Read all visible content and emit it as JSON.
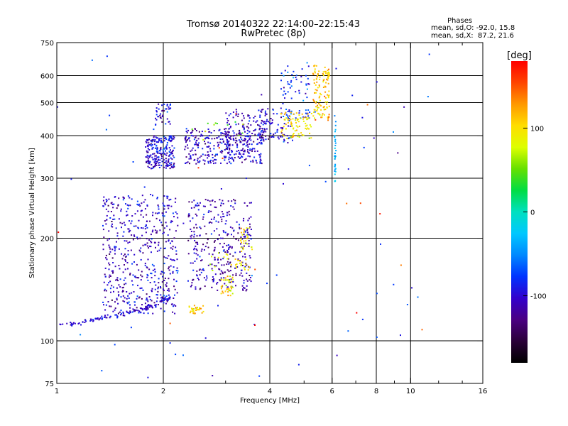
{
  "header": {
    "title": "Tromsø 20140322 22:14:00–22:15:43",
    "subtitle": "RwPretec (8p)"
  },
  "legend": {
    "heading": "Phases",
    "line_o": "mean, sd,O: -92.0, 15.8",
    "line_x": "mean, sd,X:  87.2, 21.6"
  },
  "colors": {
    "axis": "#000000",
    "background": "#ffffff",
    "colormap": [
      "#000000",
      "#2a0038",
      "#4b0082",
      "#3300cc",
      "#0033ff",
      "#0088ff",
      "#00c8ff",
      "#00e0c0",
      "#00dd44",
      "#66e000",
      "#ddff00",
      "#ffdd00",
      "#ff9900",
      "#ff4400",
      "#ff0000"
    ]
  },
  "chart_data": {
    "type": "scatter",
    "title": "Tromsø 20140322 22:14:00–22:15:43",
    "subtitle": "RwPretec (8p)",
    "xlabel": "Frequency [MHz]",
    "ylabel": "Stationary phase Virtual Height [km]",
    "xscale": "log",
    "yscale": "log",
    "xlim": [
      1,
      16
    ],
    "ylim": [
      75,
      750
    ],
    "xticks": [
      1,
      2,
      4,
      6,
      8,
      10,
      16
    ],
    "yticks": [
      75,
      100,
      200,
      300,
      400,
      500,
      600,
      750
    ],
    "vertical_gridlines": [
      2,
      4,
      6,
      8,
      10
    ],
    "horizontal_gridlines": [
      100,
      200,
      300,
      400,
      500,
      600
    ],
    "colorbar": {
      "label": "[deg]",
      "range": [
        -180,
        180
      ],
      "ticks": [
        -100,
        0,
        100
      ]
    },
    "series": [
      {
        "name": "O",
        "mean_phase": -92.0,
        "sd_phase": 15.8
      },
      {
        "name": "X",
        "mean_phase": 87.2,
        "sd_phase": 21.6
      }
    ],
    "clusters": [
      {
        "shape": "trace",
        "points": [
          [
            1.02,
            112
          ],
          [
            1.1,
            112
          ],
          [
            1.2,
            114
          ],
          [
            1.3,
            116
          ],
          [
            1.45,
            118
          ],
          [
            1.6,
            121
          ],
          [
            1.75,
            124
          ],
          [
            1.9,
            127
          ],
          [
            2.0,
            131
          ],
          [
            2.1,
            135
          ]
        ],
        "phase": -100,
        "n": 130,
        "sx": 0.004,
        "sy": 0.008
      },
      {
        "shape": "blob",
        "x": [
          1.35,
          2.2
        ],
        "y": [
          120,
          270
        ],
        "phase": -105,
        "n": 520
      },
      {
        "shape": "blob",
        "x": [
          2.35,
          3.55
        ],
        "y": [
          140,
          260
        ],
        "phase": -112,
        "n": 340
      },
      {
        "shape": "blob",
        "x": [
          1.78,
          2.15
        ],
        "y": [
          320,
          400
        ],
        "phase": -100,
        "n": 230
      },
      {
        "shape": "blob",
        "x": [
          1.9,
          2.1
        ],
        "y": [
          430,
          500
        ],
        "phase": -100,
        "n": 40
      },
      {
        "shape": "blob",
        "x": [
          2.3,
          3.8
        ],
        "y": [
          330,
          420
        ],
        "phase": -105,
        "n": 330
      },
      {
        "shape": "blob",
        "x": [
          3.0,
          3.9
        ],
        "y": [
          380,
          480
        ],
        "phase": -110,
        "n": 110
      },
      {
        "shape": "blob",
        "x": [
          3.7,
          4.6
        ],
        "y": [
          380,
          480
        ],
        "phase": -100,
        "n": 80
      },
      {
        "shape": "blob",
        "x": [
          4.3,
          5.2
        ],
        "y": [
          450,
          640
        ],
        "phase": -80,
        "n": 70
      },
      {
        "shape": "blob",
        "x": [
          4.3,
          5.3
        ],
        "y": [
          390,
          470
        ],
        "phase": 100,
        "n": 80
      },
      {
        "shape": "blob",
        "x": [
          5.3,
          5.9
        ],
        "y": [
          440,
          650
        ],
        "phase": 110,
        "n": 120
      },
      {
        "shape": "blob",
        "x": [
          2.35,
          2.6
        ],
        "y": [
          120,
          127
        ],
        "phase": 110,
        "n": 30
      },
      {
        "shape": "blob",
        "x": [
          2.9,
          3.15
        ],
        "y": [
          135,
          155
        ],
        "phase": 100,
        "n": 40
      },
      {
        "shape": "blob",
        "x": [
          3.3,
          3.6
        ],
        "y": [
          180,
          215
        ],
        "phase": 95,
        "n": 25
      },
      {
        "shape": "blob",
        "x": [
          3.1,
          3.5
        ],
        "y": [
          160,
          175
        ],
        "phase": 100,
        "n": 18
      },
      {
        "shape": "blob",
        "x": [
          2.7,
          3.1
        ],
        "y": [
          160,
          185
        ],
        "phase": 80,
        "n": 10
      },
      {
        "shape": "trace",
        "points": [
          [
            6.12,
            290
          ],
          [
            6.12,
            470
          ]
        ],
        "phase": -35,
        "n": 30,
        "sx": 0.002,
        "sy": 0.003
      },
      {
        "shape": "blob",
        "x": [
          2.4,
          3.4
        ],
        "y": [
          380,
          440
        ],
        "phase": 60,
        "n": 12
      },
      {
        "shape": "blob",
        "x": [
          1.0,
          12.0
        ],
        "y": [
          78,
          700
        ],
        "phase": -80,
        "n": 75
      },
      {
        "shape": "blob",
        "x": [
          1.0,
          12.0
        ],
        "y": [
          78,
          700
        ],
        "phase": 160,
        "n": 15
      }
    ]
  }
}
